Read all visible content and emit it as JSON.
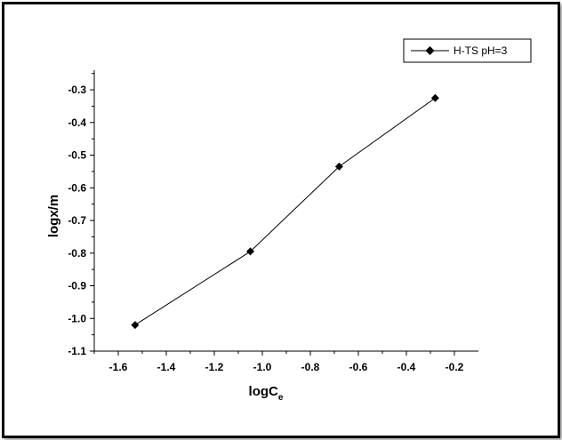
{
  "chart_data": {
    "type": "line",
    "title": "",
    "xlabel": "logC",
    "xlabel_subscript": "e",
    "ylabel": "logx/m",
    "x_ticks": [
      "-1.6",
      "-1.4",
      "-1.2",
      "-1.0",
      "-0.8",
      "-0.6",
      "-0.4",
      "-0.2"
    ],
    "y_ticks": [
      "-1.1",
      "-1.0",
      "-0.9",
      "-0.8",
      "-0.7",
      "-0.6",
      "-0.5",
      "-0.4",
      "-0.3"
    ],
    "xlim": [
      -1.7,
      -0.1
    ],
    "ylim": [
      -1.1,
      -0.24
    ],
    "grid": false,
    "legend_position": "top-right",
    "series": [
      {
        "name": "H-TS pH=3",
        "marker": "diamond",
        "color": "#000000",
        "x": [
          -1.53,
          -1.05,
          -0.68,
          -0.28
        ],
        "y": [
          -1.02,
          -0.795,
          -0.535,
          -0.325
        ]
      }
    ]
  }
}
